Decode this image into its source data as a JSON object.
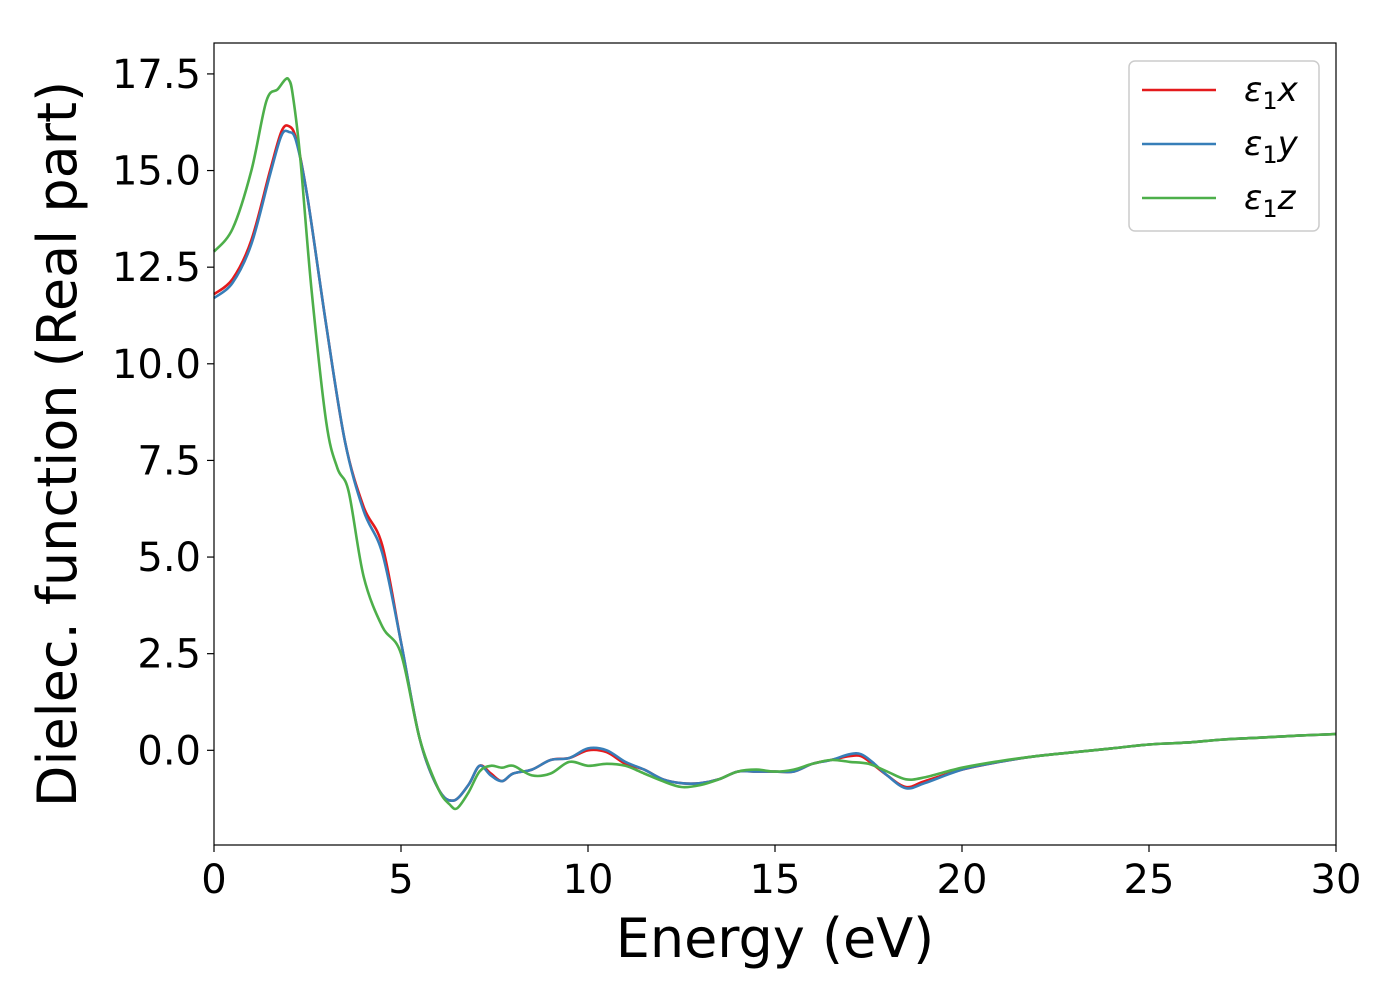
{
  "chart_data": {
    "type": "line",
    "xlabel": "Energy (eV)",
    "ylabel": "Dielec. function (Real part)",
    "xlim": [
      0,
      30
    ],
    "ylim": [
      -2.45,
      18.3
    ],
    "xticks": [
      0,
      5,
      10,
      15,
      20,
      25,
      30
    ],
    "xtick_labels": [
      "0",
      "5",
      "10",
      "15",
      "20",
      "25",
      "30"
    ],
    "yticks": [
      0,
      2.5,
      5,
      7.5,
      10,
      12.5,
      15,
      17.5
    ],
    "ytick_labels": [
      "0.0",
      "2.5",
      "5.0",
      "7.5",
      "10.0",
      "12.5",
      "15.0",
      "17.5"
    ],
    "grid": false,
    "legend_position": "top-right",
    "series": [
      {
        "name": "ε1x",
        "legend_base": "ε",
        "legend_sub": "1",
        "legend_var": "x",
        "color": "#e41a1c",
        "x": [
          0,
          0.5,
          1.0,
          1.5,
          1.8,
          2.0,
          2.2,
          2.5,
          3.0,
          3.5,
          4.0,
          4.5,
          5.0,
          5.5,
          6.0,
          6.4,
          6.8,
          7.1,
          7.4,
          7.7,
          8.0,
          8.5,
          9.0,
          9.5,
          10.0,
          10.5,
          11.0,
          11.5,
          12.0,
          12.5,
          13.0,
          13.5,
          14.0,
          14.5,
          15.0,
          15.5,
          16.0,
          16.5,
          17.0,
          17.3,
          17.6,
          18.0,
          18.5,
          19.0,
          20.0,
          21.0,
          22.0,
          23.0,
          24.0,
          25.0,
          26.0,
          27.0,
          28.0,
          29.0,
          30.0
        ],
        "y": [
          11.8,
          12.2,
          13.2,
          15.0,
          16.0,
          16.15,
          15.8,
          14.3,
          11.0,
          8.0,
          6.3,
          5.3,
          2.8,
          0.3,
          -1.0,
          -1.3,
          -0.9,
          -0.4,
          -0.6,
          -0.8,
          -0.6,
          -0.5,
          -0.25,
          -0.2,
          0.0,
          -0.05,
          -0.35,
          -0.5,
          -0.75,
          -0.85,
          -0.85,
          -0.75,
          -0.55,
          -0.55,
          -0.55,
          -0.55,
          -0.35,
          -0.25,
          -0.15,
          -0.15,
          -0.35,
          -0.65,
          -0.95,
          -0.8,
          -0.5,
          -0.3,
          -0.15,
          -0.05,
          0.05,
          0.15,
          0.2,
          0.28,
          0.33,
          0.38,
          0.42
        ]
      },
      {
        "name": "ε1y",
        "legend_base": "ε",
        "legend_sub": "1",
        "legend_var": "y",
        "color": "#377eb8",
        "x": [
          0,
          0.5,
          1.0,
          1.5,
          1.8,
          2.0,
          2.2,
          2.5,
          3.0,
          3.5,
          4.0,
          4.5,
          5.0,
          5.5,
          6.0,
          6.4,
          6.8,
          7.1,
          7.4,
          7.7,
          8.0,
          8.5,
          9.0,
          9.5,
          10.0,
          10.5,
          11.0,
          11.5,
          12.0,
          12.5,
          13.0,
          13.5,
          14.0,
          14.5,
          15.0,
          15.5,
          16.0,
          16.5,
          17.0,
          17.3,
          17.6,
          18.0,
          18.5,
          19.0,
          20.0,
          21.0,
          22.0,
          23.0,
          24.0,
          25.0,
          26.0,
          27.0,
          28.0,
          29.0,
          30.0
        ],
        "y": [
          11.7,
          12.1,
          13.1,
          14.9,
          15.9,
          16.0,
          15.75,
          14.3,
          11.0,
          8.0,
          6.2,
          5.1,
          2.8,
          0.3,
          -1.0,
          -1.3,
          -0.9,
          -0.4,
          -0.65,
          -0.8,
          -0.6,
          -0.5,
          -0.25,
          -0.2,
          0.05,
          0.0,
          -0.3,
          -0.5,
          -0.75,
          -0.85,
          -0.85,
          -0.75,
          -0.55,
          -0.55,
          -0.55,
          -0.55,
          -0.35,
          -0.25,
          -0.1,
          -0.1,
          -0.3,
          -0.65,
          -0.98,
          -0.85,
          -0.5,
          -0.3,
          -0.15,
          -0.05,
          0.05,
          0.15,
          0.2,
          0.28,
          0.33,
          0.38,
          0.42
        ]
      },
      {
        "name": "ε1z",
        "legend_base": "ε",
        "legend_sub": "1",
        "legend_var": "z",
        "color": "#4daf4a",
        "x": [
          0,
          0.5,
          1.0,
          1.4,
          1.7,
          1.9,
          2.0,
          2.1,
          2.3,
          2.6,
          3.0,
          3.3,
          3.6,
          4.0,
          4.5,
          5.0,
          5.5,
          6.0,
          6.3,
          6.5,
          6.8,
          7.1,
          7.4,
          7.7,
          8.0,
          8.5,
          9.0,
          9.5,
          10.0,
          10.5,
          11.0,
          11.5,
          12.0,
          12.5,
          13.0,
          13.5,
          14.0,
          14.5,
          15.0,
          15.5,
          16.0,
          16.5,
          17.0,
          17.5,
          18.0,
          18.5,
          19.0,
          20.0,
          21.0,
          22.0,
          23.0,
          24.0,
          25.0,
          26.0,
          27.0,
          28.0,
          29.0,
          30.0
        ],
        "y": [
          12.9,
          13.5,
          15.0,
          16.8,
          17.1,
          17.35,
          17.35,
          17.0,
          15.4,
          12.0,
          8.5,
          7.3,
          6.7,
          4.5,
          3.2,
          2.5,
          0.3,
          -1.0,
          -1.4,
          -1.5,
          -1.1,
          -0.55,
          -0.4,
          -0.45,
          -0.4,
          -0.65,
          -0.6,
          -0.3,
          -0.4,
          -0.35,
          -0.4,
          -0.6,
          -0.8,
          -0.95,
          -0.9,
          -0.75,
          -0.55,
          -0.5,
          -0.55,
          -0.5,
          -0.35,
          -0.25,
          -0.3,
          -0.35,
          -0.55,
          -0.75,
          -0.7,
          -0.45,
          -0.28,
          -0.15,
          -0.05,
          0.05,
          0.15,
          0.2,
          0.28,
          0.33,
          0.38,
          0.42
        ]
      }
    ]
  }
}
